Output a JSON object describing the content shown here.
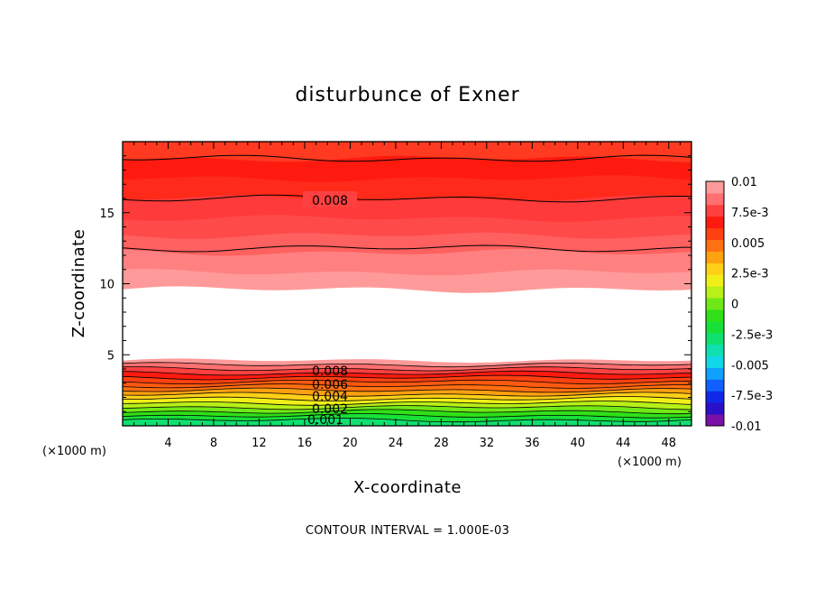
{
  "chart_data": {
    "type": "contour",
    "title": "disturbunce of Exner",
    "xlabel": "X-coordinate",
    "ylabel": "Z-coordinate",
    "x_unit": "(×1000 m)",
    "y_unit": "(×1000 m)",
    "xlim": [
      0,
      50
    ],
    "ylim": [
      0,
      20
    ],
    "x_ticks": [
      4,
      8,
      12,
      16,
      20,
      24,
      28,
      32,
      36,
      40,
      44,
      48
    ],
    "y_ticks": [
      5,
      10,
      15
    ],
    "colorbar": {
      "range": [
        -0.01,
        0.01
      ],
      "tick_labels": [
        "0.01",
        "7.5e-3",
        "0.005",
        "2.5e-3",
        "0",
        "-2.5e-3",
        "-0.005",
        "-7.5e-3",
        "-0.01"
      ],
      "colors": [
        "#7a10a8",
        "#2a10c8",
        "#1028e8",
        "#1060ff",
        "#10a0ff",
        "#10d8e8",
        "#10e0b0",
        "#10e070",
        "#18e038",
        "#30e018",
        "#70e818",
        "#b8f018",
        "#f0f018",
        "#ffd018",
        "#ffa010",
        "#ff7010",
        "#ff4010",
        "#ff1a10",
        "#ff4040",
        "#ff7070",
        "#ff9a9a"
      ]
    },
    "contour_labels": [
      "0.008",
      "0.008",
      "0.006",
      "0.004",
      "0.002",
      "0.001"
    ],
    "lower_band_z": [
      0,
      4.6
    ],
    "empty_band_z": [
      4.6,
      9.6
    ],
    "upper_band_z": [
      9.6,
      20
    ],
    "contour_interval_text": "CONTOUR INTERVAL = 1.000E-03"
  }
}
